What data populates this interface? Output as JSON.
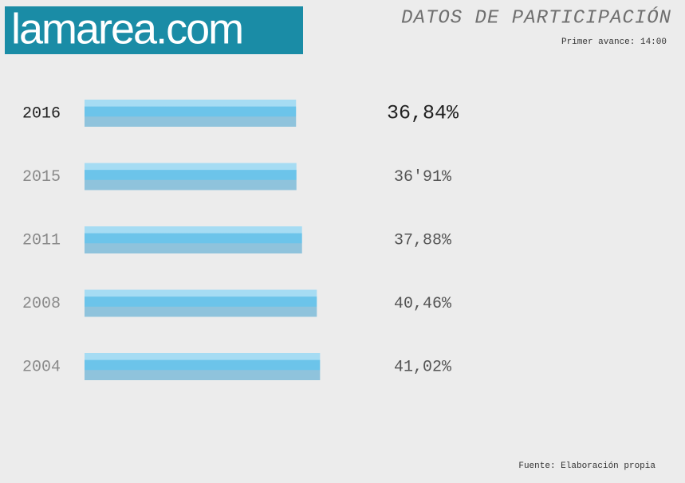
{
  "logo": "lamarea.com",
  "chart_data": {
    "type": "bar",
    "orientation": "horizontal",
    "title": "DATOS DE PARTICIPACIÓN",
    "subtitle": "Primer avance: 14:00",
    "source": "Fuente: Elaboración propia",
    "categories": [
      "2016",
      "2015",
      "2011",
      "2008",
      "2004"
    ],
    "values": [
      36.84,
      36.91,
      37.88,
      40.46,
      41.02
    ],
    "value_labels": [
      "36,84%",
      "36'91%",
      "37,88%",
      "40,46%",
      "41,02%"
    ],
    "color": "#6cc4ea"
  }
}
